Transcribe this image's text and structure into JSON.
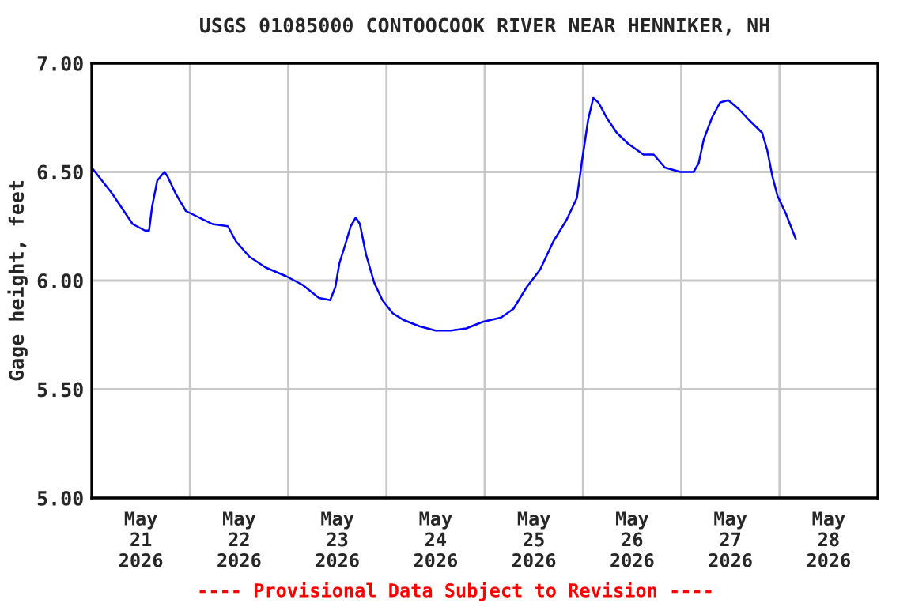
{
  "chart_data": {
    "type": "line",
    "title": "USGS 01085000 CONTOOCOOK RIVER NEAR HENNIKER, NH",
    "ylabel": "Gage height, feet",
    "annotations": [
      "---- Provisional Data Subject to Revision ----"
    ],
    "x": [
      "2026-05-21T00:00",
      "2026-05-21T02:30",
      "2026-05-21T05:00",
      "2026-05-21T07:30",
      "2026-05-21T10:00",
      "2026-05-21T13:00",
      "2026-05-21T14:00",
      "2026-05-21T14:45",
      "2026-05-21T16:00",
      "2026-05-21T17:45",
      "2026-05-21T18:30",
      "2026-05-21T20:30",
      "2026-05-21T23:00",
      "2026-05-22T02:15",
      "2026-05-22T05:30",
      "2026-05-22T09:15",
      "2026-05-22T11:15",
      "2026-05-22T14:30",
      "2026-05-22T18:30",
      "2026-05-22T23:30",
      "2026-05-23T03:30",
      "2026-05-23T07:30",
      "2026-05-23T10:15",
      "2026-05-23T11:30",
      "2026-05-23T12:30",
      "2026-05-23T14:00",
      "2026-05-23T15:15",
      "2026-05-23T16:30",
      "2026-05-23T17:30",
      "2026-05-23T19:00",
      "2026-05-23T21:00",
      "2026-05-23T23:00",
      "2026-05-24T01:30",
      "2026-05-24T04:00",
      "2026-05-24T08:00",
      "2026-05-24T12:00",
      "2026-05-24T15:45",
      "2026-05-24T19:30",
      "2026-05-24T23:30",
      "2026-05-25T04:00",
      "2026-05-25T07:00",
      "2026-05-25T10:15",
      "2026-05-25T13:30",
      "2026-05-25T16:45",
      "2026-05-25T20:00",
      "2026-05-25T22:30",
      "2026-05-25T23:45",
      "2026-05-26T01:15",
      "2026-05-26T02:30",
      "2026-05-26T03:45",
      "2026-05-26T05:45",
      "2026-05-26T08:15",
      "2026-05-26T11:00",
      "2026-05-26T14:45",
      "2026-05-26T17:15",
      "2026-05-26T20:00",
      "2026-05-26T23:45",
      "2026-05-27T03:00",
      "2026-05-27T04:15",
      "2026-05-27T05:30",
      "2026-05-27T07:30",
      "2026-05-27T09:30",
      "2026-05-27T11:30",
      "2026-05-27T14:00",
      "2026-05-27T16:30",
      "2026-05-27T19:45",
      "2026-05-27T21:00",
      "2026-05-27T22:15",
      "2026-05-27T23:30",
      "2026-05-28T01:30",
      "2026-05-28T02:45",
      "2026-05-28T04:00"
    ],
    "series": [
      {
        "color": "#0000ff",
        "values": [
          6.52,
          6.46,
          6.4,
          6.33,
          6.26,
          6.23,
          6.23,
          6.34,
          6.46,
          6.5,
          6.48,
          6.4,
          6.32,
          6.29,
          6.26,
          6.25,
          6.18,
          6.11,
          6.06,
          6.02,
          5.98,
          5.92,
          5.91,
          5.97,
          6.08,
          6.17,
          6.25,
          6.29,
          6.26,
          6.12,
          5.99,
          5.91,
          5.85,
          5.82,
          5.79,
          5.77,
          5.77,
          5.78,
          5.81,
          5.83,
          5.87,
          5.97,
          6.05,
          6.18,
          6.28,
          6.38,
          6.55,
          6.74,
          6.84,
          6.82,
          6.75,
          6.68,
          6.63,
          6.58,
          6.58,
          6.52,
          6.5,
          6.5,
          6.54,
          6.65,
          6.75,
          6.82,
          6.83,
          6.79,
          6.74,
          6.68,
          6.6,
          6.48,
          6.39,
          6.31,
          6.25,
          6.19
        ]
      }
    ],
    "xlim": [
      "2026-05-21T00:00",
      "2026-05-29T00:00"
    ],
    "xticks": [
      {
        "value": "2026-05-21T12:00",
        "label": "May\n21\n2026"
      },
      {
        "value": "2026-05-22T00:00",
        "label": null
      },
      {
        "value": "2026-05-22T12:00",
        "label": "May\n22\n2026"
      },
      {
        "value": "2026-05-23T00:00",
        "label": null
      },
      {
        "value": "2026-05-23T12:00",
        "label": "May\n23\n2026"
      },
      {
        "value": "2026-05-24T00:00",
        "label": null
      },
      {
        "value": "2026-05-24T12:00",
        "label": "May\n24\n2026"
      },
      {
        "value": "2026-05-25T00:00",
        "label": null
      },
      {
        "value": "2026-05-25T12:00",
        "label": "May\n25\n2026"
      },
      {
        "value": "2026-05-26T00:00",
        "label": null
      },
      {
        "value": "2026-05-26T12:00",
        "label": "May\n26\n2026"
      },
      {
        "value": "2026-05-27T00:00",
        "label": null
      },
      {
        "value": "2026-05-27T12:00",
        "label": "May\n27\n2026"
      },
      {
        "value": "2026-05-28T00:00",
        "label": null
      },
      {
        "value": "2026-05-28T12:00",
        "label": "May\n28\n2026"
      }
    ],
    "ylim": [
      5.0,
      7.0
    ],
    "yticks": [
      {
        "value": 5.0,
        "label": "5.00"
      },
      {
        "value": 5.5,
        "label": "5.50"
      },
      {
        "value": 6.0,
        "label": "6.00"
      },
      {
        "value": 6.5,
        "label": "6.50"
      },
      {
        "value": 7.0,
        "label": "7.00"
      }
    ],
    "grid": true,
    "legend": false,
    "marker": "none",
    "line_style": "solid"
  }
}
